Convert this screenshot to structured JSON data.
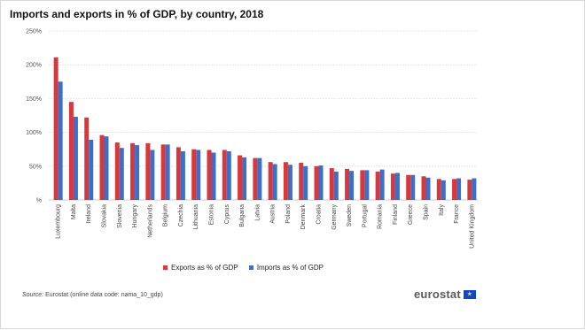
{
  "title": "Imports and exports in % of GDP, by country, 2018",
  "source_label": "Source:",
  "source_text": "Eurostat (online data code: nama_10_gdp)",
  "logo_text": "eurostat",
  "colors": {
    "exports": "#d9383a",
    "imports": "#3d6ec9",
    "grid": "#e3e3e3"
  },
  "chart_data": {
    "type": "bar",
    "title": "Imports and exports in % of GDP, by country, 2018",
    "ylim": [
      0,
      250
    ],
    "yticks": [
      "%",
      "50%",
      "100%",
      "150%",
      "200%",
      "250%"
    ],
    "grid": true,
    "legend_position": "bottom",
    "categories": [
      "Luxembourg",
      "Malta",
      "Ireland",
      "Slovakia",
      "Slovenia",
      "Hungary",
      "Netherlands",
      "Belgium",
      "Czechia",
      "Lithuania",
      "Estonia",
      "Cyprus",
      "Bulgaria",
      "Latvia",
      "Austria",
      "Poland",
      "Denmark",
      "Croatia",
      "Germany",
      "Sweden",
      "Portugal",
      "Romania",
      "Finland",
      "Greece",
      "Spain",
      "Italy",
      "France",
      "United Kingdom"
    ],
    "series": [
      {
        "name": "Exports as % of GDP",
        "values": [
          211,
          145,
          122,
          96,
          85,
          84,
          84,
          82,
          78,
          75,
          74,
          74,
          66,
          62,
          56,
          56,
          55,
          50,
          47,
          46,
          44,
          42,
          39,
          37,
          35,
          31,
          31,
          30
        ]
      },
      {
        "name": "Imports as % of GDP",
        "values": [
          175,
          123,
          89,
          94,
          77,
          81,
          74,
          82,
          72,
          74,
          70,
          72,
          63,
          62,
          53,
          52,
          50,
          51,
          42,
          43,
          44,
          45,
          40,
          37,
          33,
          29,
          32,
          32
        ]
      }
    ]
  }
}
